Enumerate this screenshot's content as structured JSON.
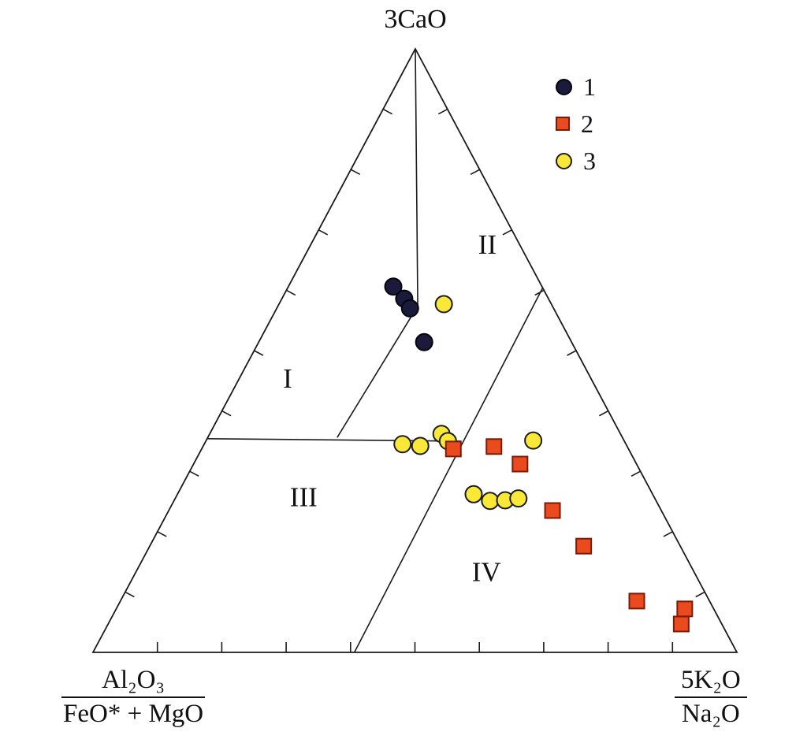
{
  "labels": {
    "top_vertex": "3CaO",
    "bottom_left_numerator": "Al₂O₃",
    "bottom_left_denominator": "FeO* + MgO",
    "bottom_right_numerator": "5K₂O",
    "bottom_right_denominator": "Na₂O"
  },
  "chart_data": {
    "type": "scatter",
    "subtype": "ternary",
    "title": "",
    "axes": {
      "top": "3CaO",
      "bottom_left": "Al₂O₃ / (FeO* + MgO)",
      "bottom_right": "5K₂O / Na₂O"
    },
    "grid": false,
    "legend_position": "top-right",
    "tick_divisions": 10,
    "line_color": "#1a1a1a",
    "regions": [
      {
        "label": "I",
        "pos": [
          0.454,
          0.471,
          0.075
        ]
      },
      {
        "label": "II",
        "pos": [
          0.676,
          0.05,
          0.274
        ]
      },
      {
        "label": "III",
        "pos": [
          0.258,
          0.544,
          0.198
        ]
      },
      {
        "label": "IV",
        "pos": [
          0.134,
          0.322,
          0.544
        ]
      }
    ],
    "boundaries": [
      [
        [
          1.0,
          0.0,
          0.0
        ],
        [
          0.574,
          0.209,
          0.217
        ]
      ],
      [
        [
          0.574,
          0.209,
          0.217
        ],
        [
          0.356,
          0.443,
          0.201
        ]
      ],
      [
        [
          0.354,
          0.646,
          0.0
        ],
        [
          0.35,
          0.254,
          0.396
        ]
      ],
      [
        [
          0.604,
          0.0,
          0.396
        ],
        [
          0.0,
          0.594,
          0.406
        ]
      ]
    ],
    "draw_order": [
      0,
      2,
      1
    ],
    "series": [
      {
        "name": "1",
        "marker": "circle",
        "color": "#1a1a3c",
        "stroke": "#05050a",
        "points": [
          [
            0.606,
            0.231,
            0.163
          ],
          [
            0.586,
            0.224,
            0.19
          ],
          [
            0.57,
            0.223,
            0.207
          ],
          [
            0.514,
            0.229,
            0.257
          ]
        ]
      },
      {
        "name": "2",
        "marker": "square",
        "color": "#e94a1e",
        "stroke": "#7c1a05",
        "points": [
          [
            0.337,
            0.272,
            0.391
          ],
          [
            0.341,
            0.207,
            0.452
          ],
          [
            0.312,
            0.181,
            0.507
          ],
          [
            0.235,
            0.169,
            0.596
          ],
          [
            0.176,
            0.15,
            0.674
          ],
          [
            0.085,
            0.113,
            0.802
          ],
          [
            0.072,
            0.045,
            0.883
          ],
          [
            0.047,
            0.063,
            0.89
          ]
        ]
      },
      {
        "name": "3",
        "marker": "circle",
        "color": "#f9e837",
        "stroke": "#1c1c1c",
        "points": [
          [
            0.577,
            0.167,
            0.256
          ],
          [
            0.345,
            0.347,
            0.308
          ],
          [
            0.342,
            0.321,
            0.337
          ],
          [
            0.362,
            0.278,
            0.36
          ],
          [
            0.35,
            0.274,
            0.376
          ],
          [
            0.351,
            0.141,
            0.508
          ],
          [
            0.262,
            0.278,
            0.46
          ],
          [
            0.251,
            0.258,
            0.491
          ],
          [
            0.252,
            0.234,
            0.514
          ],
          [
            0.255,
            0.212,
            0.533
          ]
        ]
      }
    ]
  }
}
